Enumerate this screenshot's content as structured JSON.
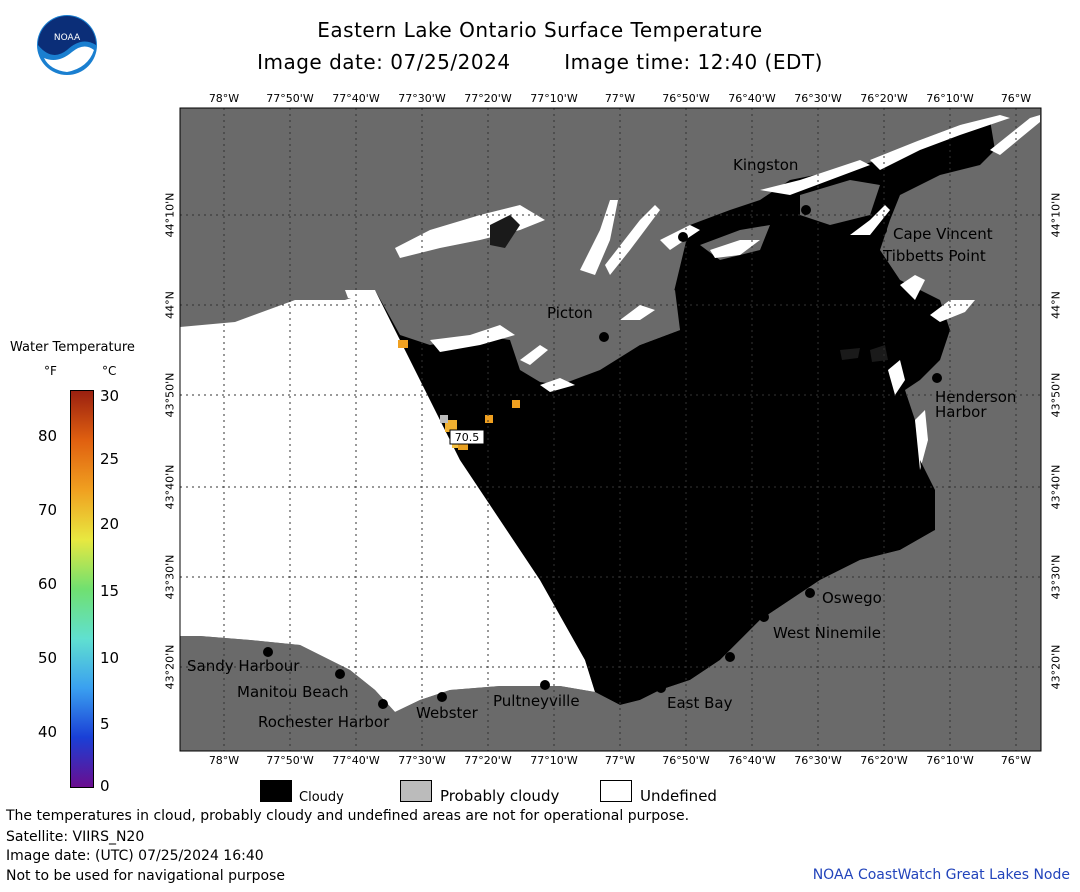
{
  "header": {
    "title": "Eastern Lake Ontario Surface Temperature",
    "image_date_label": "Image date: 07/25/2024",
    "image_time_label": "Image time: 12:40 (EDT)",
    "logo_text": "NOAA"
  },
  "axes": {
    "lon_labels": [
      "78°W",
      "77°50'W",
      "77°40'W",
      "77°30'W",
      "77°20'W",
      "77°10'W",
      "77°W",
      "76°50'W",
      "76°40'W",
      "76°30'W",
      "76°20'W",
      "76°10'W",
      "76°W"
    ],
    "lat_labels": [
      "44°10'N",
      "44°N",
      "43°50'N",
      "43°40'N",
      "43°30'N",
      "43°20'N"
    ]
  },
  "places": {
    "kingston": "Kingston",
    "cape_vincent": "Cape Vincent",
    "tibbetts_point": "Tibbetts Point",
    "picton": "Picton",
    "henderson": "Henderson",
    "harbor": "Harbor",
    "oswego": "Oswego",
    "west_ninemile": "West Ninemile",
    "east_bay": "East Bay",
    "pultneyville": "Pultneyville",
    "webster": "Webster",
    "rochester_harbor": "Rochester Harbor",
    "manitou_beach": "Manitou Beach",
    "sandy_harbour": "Sandy Harbour"
  },
  "measurement": {
    "value": "70.5"
  },
  "colorbar": {
    "title": "Water Temperature",
    "unit_f": "°F",
    "unit_c": "°C",
    "f_ticks": [
      "80",
      "70",
      "60",
      "50",
      "40"
    ],
    "c_ticks": [
      "30",
      "25",
      "20",
      "15",
      "10",
      "5",
      "0"
    ],
    "colors": [
      "#6a0d8f",
      "#1a3fd6",
      "#3aa0f0",
      "#60e0d0",
      "#70e070",
      "#e8e840",
      "#f0a020",
      "#e06010",
      "#9a2010"
    ]
  },
  "legend": {
    "cloudy": "Cloudy",
    "probably_cloudy": "Probably cloudy",
    "undefined": "Undefined"
  },
  "footer": {
    "note": "The temperatures in cloud, probably cloudy and undefined areas are not for operational purpose.",
    "satellite": "Satellite: VIIRS_N20",
    "utc_date": "Image date: (UTC) 07/25/2024  16:40",
    "nav_warning": "Not to be used for navigational purpose",
    "node": "NOAA CoastWatch Great Lakes Node"
  },
  "colors": {
    "land": "#6a6a6a",
    "cloudy": "#000000",
    "probably_cloudy": "#bbbbbb",
    "undefined": "#ffffff",
    "noaa_blue": "#1a7fd0"
  }
}
